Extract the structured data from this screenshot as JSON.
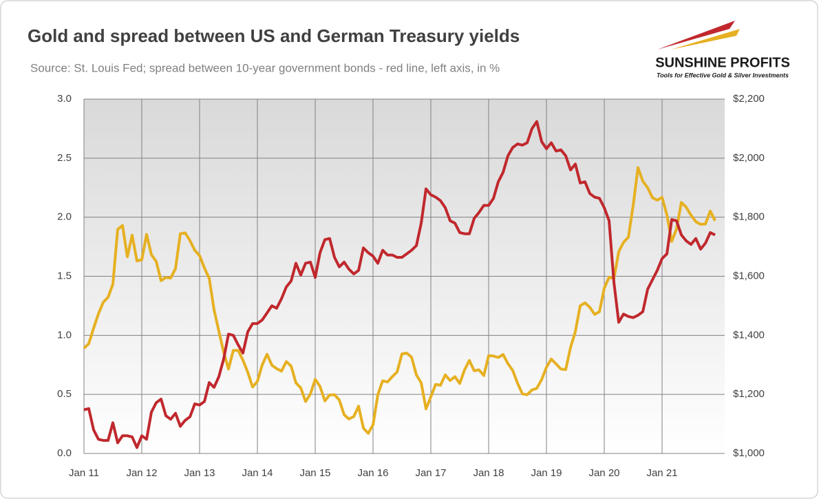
{
  "chart_data": {
    "type": "line",
    "title": "Gold and spread between US and German Treasury yields",
    "subtitle": "Source: St. Louis Fed; spread between 10-year government bonds - red line, left axis, in %",
    "logo": {
      "name": "SUNSHINE PROFITS",
      "tagline": "Tools for Effective Gold & Silver Investments"
    },
    "categories": [
      "Jan 11",
      null,
      null,
      null,
      null,
      null,
      null,
      null,
      null,
      null,
      null,
      null,
      "Jan 12",
      null,
      null,
      null,
      null,
      null,
      null,
      null,
      null,
      null,
      null,
      null,
      "Jan 13",
      null,
      null,
      null,
      null,
      null,
      null,
      null,
      null,
      null,
      null,
      null,
      "Jan 14",
      null,
      null,
      null,
      null,
      null,
      null,
      null,
      null,
      null,
      null,
      null,
      "Jan 15",
      null,
      null,
      null,
      null,
      null,
      null,
      null,
      null,
      null,
      null,
      null,
      "Jan 16",
      null,
      null,
      null,
      null,
      null,
      null,
      null,
      null,
      null,
      null,
      null,
      "Jan 17",
      null,
      null,
      null,
      null,
      null,
      null,
      null,
      null,
      null,
      null,
      null,
      "Jan 18",
      null,
      null,
      null,
      null,
      null,
      null,
      null,
      null,
      null,
      null,
      null,
      "Jan 19",
      null,
      null,
      null,
      null,
      null,
      null,
      null,
      null,
      null,
      null,
      null,
      "Jan 20",
      null,
      null,
      null,
      null,
      null,
      null,
      null,
      null,
      null,
      null,
      null,
      "Jan 21",
      null,
      null,
      null,
      null,
      null,
      null,
      null,
      null,
      null,
      null,
      null
    ],
    "series": [
      {
        "name": "Spread",
        "color": "#c0282d",
        "values": [
          0.37,
          0.38,
          0.2,
          0.12,
          0.11,
          0.11,
          0.26,
          0.09,
          0.15,
          0.15,
          0.14,
          0.05,
          0.15,
          0.12,
          0.35,
          0.43,
          0.46,
          0.32,
          0.29,
          0.34,
          0.23,
          0.28,
          0.31,
          0.42,
          0.41,
          0.44,
          0.6,
          0.56,
          0.65,
          0.8,
          1.01,
          1.0,
          0.92,
          0.85,
          1.03,
          1.1,
          1.1,
          1.13,
          1.19,
          1.25,
          1.23,
          1.31,
          1.41,
          1.46,
          1.61,
          1.51,
          1.61,
          1.62,
          1.49,
          1.7,
          1.81,
          1.82,
          1.66,
          1.58,
          1.62,
          1.56,
          1.52,
          1.55,
          1.74,
          1.7,
          1.67,
          1.61,
          1.72,
          1.68,
          1.68,
          1.66,
          1.66,
          1.69,
          1.72,
          1.76,
          1.95,
          2.24,
          2.19,
          2.17,
          2.14,
          2.08,
          1.97,
          1.95,
          1.87,
          1.86,
          1.86,
          1.99,
          2.04,
          2.1,
          2.1,
          2.16,
          2.3,
          2.38,
          2.52,
          2.59,
          2.62,
          2.61,
          2.63,
          2.75,
          2.81,
          2.64,
          2.58,
          2.63,
          2.56,
          2.57,
          2.52,
          2.4,
          2.45,
          2.29,
          2.3,
          2.2,
          2.17,
          2.16,
          2.08,
          1.97,
          1.45,
          1.11,
          1.18,
          1.16,
          1.15,
          1.17,
          1.2,
          1.39,
          1.47,
          1.55,
          1.65,
          1.69,
          1.98,
          1.97,
          1.85,
          1.8,
          1.77,
          1.82,
          1.73,
          1.78,
          1.87,
          1.85
        ]
      },
      {
        "name": "Gold",
        "color": "#e6b022",
        "axis": "y2",
        "values": [
          1356,
          1372,
          1424,
          1473,
          1512,
          1529,
          1573,
          1759,
          1772,
          1666,
          1739,
          1652,
          1656,
          1742,
          1673,
          1650,
          1585,
          1596,
          1594,
          1626,
          1744,
          1747,
          1721,
          1688,
          1670,
          1628,
          1593,
          1487,
          1414,
          1343,
          1286,
          1349,
          1349,
          1316,
          1275,
          1225,
          1244,
          1300,
          1336,
          1299,
          1287,
          1279,
          1311,
          1296,
          1239,
          1222,
          1176,
          1201,
          1251,
          1227,
          1178,
          1198,
          1199,
          1181,
          1131,
          1117,
          1125,
          1160,
          1086,
          1068,
          1097,
          1199,
          1246,
          1242,
          1260,
          1276,
          1337,
          1340,
          1326,
          1266,
          1239,
          1151,
          1192,
          1234,
          1231,
          1266,
          1247,
          1260,
          1237,
          1283,
          1315,
          1280,
          1283,
          1264,
          1331,
          1330,
          1325,
          1335,
          1304,
          1281,
          1238,
          1202,
          1199,
          1215,
          1221,
          1250,
          1292,
          1320,
          1303,
          1286,
          1284,
          1359,
          1413,
          1500,
          1510,
          1495,
          1471,
          1480,
          1560,
          1597,
          1592,
          1683,
          1715,
          1732,
          1840,
          1968,
          1922,
          1900,
          1866,
          1858,
          1867,
          1808,
          1718,
          1760,
          1850,
          1834,
          1807,
          1785,
          1776,
          1777,
          1821,
          1788
        ]
      }
    ],
    "ylim": [
      0,
      3
    ],
    "yticks": [
      {
        "value": 0,
        "label": "0.0"
      },
      0.5,
      {
        "value": 1,
        "label": "1.0"
      },
      1.5,
      {
        "value": 2,
        "label": "2.0"
      },
      2.5,
      {
        "value": 3,
        "label": "3.0"
      }
    ],
    "y2lim": [
      1000,
      2200
    ],
    "y2ticks": [
      {
        "value": 1000,
        "label": "$1,000"
      },
      {
        "value": 1200,
        "label": "$1,200"
      },
      {
        "value": 1400,
        "label": "$1,400"
      },
      {
        "value": 1600,
        "label": "$1,600"
      },
      {
        "value": 1800,
        "label": "$1,800"
      },
      {
        "value": 2000,
        "label": "$2,000"
      },
      {
        "value": 2200,
        "label": "$2,200"
      }
    ],
    "grid": true
  }
}
